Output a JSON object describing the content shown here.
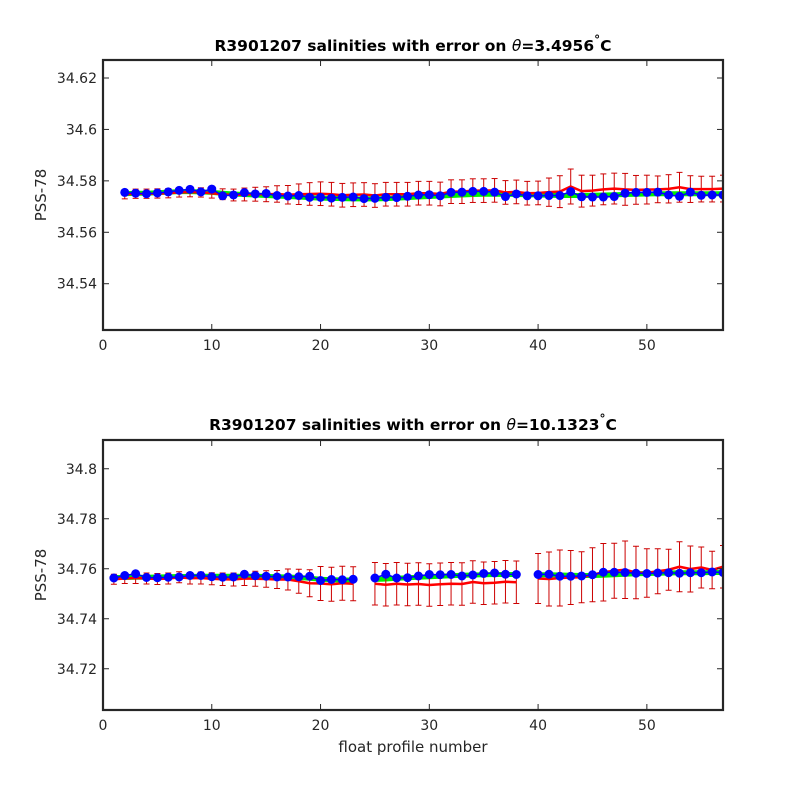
{
  "chart_data": [
    {
      "type": "line",
      "title": "R3901207 salinities with error on θ=3.4956°C",
      "title_parts": [
        "R3901207 salinities with error on ",
        "θ",
        "=3.4956",
        "°",
        "C"
      ],
      "xlabel": "",
      "ylabel": "PSS-78",
      "xlim": [
        0,
        57
      ],
      "ylim": [
        34.522,
        34.627
      ],
      "xticks": [
        "0",
        "10",
        "20",
        "30",
        "40",
        "50"
      ],
      "xtick_values": [
        0,
        10,
        20,
        30,
        40,
        50
      ],
      "yticks": [
        "34.54",
        "34.56",
        "34.58",
        "34.6",
        "34.62"
      ],
      "ytick_values": [
        34.54,
        34.56,
        34.58,
        34.6,
        34.62
      ],
      "grid": false,
      "colors": {
        "measured": "#0000ff",
        "calibrated": "#ff0000",
        "mapped": "#00ee00",
        "error_bar": "#cc0000"
      },
      "x": [
        2,
        3,
        4,
        5,
        6,
        7,
        8,
        9,
        10,
        11,
        12,
        13,
        14,
        15,
        16,
        17,
        18,
        19,
        20,
        21,
        22,
        23,
        24,
        25,
        26,
        27,
        28,
        29,
        30,
        31,
        32,
        33,
        34,
        35,
        36,
        37,
        38,
        39,
        40,
        41,
        42,
        43,
        44,
        45,
        46,
        47,
        48,
        49,
        50,
        51,
        52,
        53,
        54,
        55,
        56,
        57
      ],
      "series": [
        {
          "role": "mapped",
          "values": [
            34.575,
            34.5752,
            34.5752,
            34.5754,
            34.5756,
            34.5758,
            34.5758,
            34.5757,
            34.5755,
            34.5752,
            34.5749,
            34.5747,
            34.5745,
            34.5743,
            34.5741,
            34.5739,
            34.5737,
            34.5735,
            34.5733,
            34.5732,
            34.5731,
            34.573,
            34.573,
            34.573,
            34.5731,
            34.5733,
            34.5735,
            34.5737,
            34.5739,
            34.5741,
            34.5743,
            34.5745,
            34.5747,
            34.5748,
            34.5748,
            34.5748,
            34.5747,
            34.5746,
            34.5745,
            34.5744,
            34.5743,
            34.5743,
            34.5743,
            34.5744,
            34.5745,
            34.5746,
            34.5747,
            34.5748,
            34.5749,
            34.575,
            34.575,
            34.575,
            34.575,
            34.575,
            34.575,
            34.575
          ]
        },
        {
          "role": "calibrated",
          "values": [
            34.5748,
            34.575,
            34.575,
            34.5751,
            34.5752,
            34.5755,
            34.5756,
            34.5755,
            34.5752,
            34.5748,
            34.5745,
            34.5747,
            34.5748,
            34.5748,
            34.5749,
            34.5746,
            34.5748,
            34.5749,
            34.575,
            34.5748,
            34.5744,
            34.5746,
            34.5747,
            34.5743,
            34.5748,
            34.5748,
            34.5748,
            34.5752,
            34.5752,
            34.5749,
            34.5758,
            34.5758,
            34.5762,
            34.5762,
            34.5763,
            34.5755,
            34.5757,
            34.5752,
            34.5753,
            34.5756,
            34.5758,
            34.5778,
            34.576,
            34.5762,
            34.5767,
            34.577,
            34.5767,
            34.5765,
            34.5766,
            34.5767,
            34.5769,
            34.5775,
            34.5768,
            34.5768,
            34.5768,
            34.577
          ],
          "error": [
            0.0018,
            0.0018,
            0.0018,
            0.0018,
            0.0018,
            0.0018,
            0.0018,
            0.0018,
            0.0019,
            0.0021,
            0.0023,
            0.0025,
            0.0027,
            0.0029,
            0.0032,
            0.0036,
            0.004,
            0.0044,
            0.0046,
            0.0046,
            0.0046,
            0.0046,
            0.0046,
            0.0046,
            0.0046,
            0.0046,
            0.0046,
            0.0046,
            0.0046,
            0.0046,
            0.0046,
            0.0046,
            0.0046,
            0.0046,
            0.0046,
            0.0046,
            0.0046,
            0.0046,
            0.0046,
            0.0055,
            0.0062,
            0.0068,
            0.0062,
            0.006,
            0.006,
            0.006,
            0.0062,
            0.0056,
            0.0056,
            0.0052,
            0.0055,
            0.0058,
            0.0052,
            0.005,
            0.005,
            0.0052
          ]
        },
        {
          "role": "measured",
          "values": [
            34.5755,
            34.5752,
            34.575,
            34.5753,
            34.5757,
            34.5763,
            34.5767,
            34.5757,
            34.5768,
            34.5742,
            34.5745,
            34.5754,
            34.5749,
            34.5751,
            34.5743,
            34.5741,
            34.5743,
            34.5736,
            34.5736,
            34.5733,
            34.5736,
            34.5737,
            34.5731,
            34.5732,
            34.5736,
            34.5735,
            34.574,
            34.5745,
            34.5746,
            34.5742,
            34.5755,
            34.5756,
            34.5759,
            34.5759,
            34.5756,
            34.5739,
            34.5749,
            34.5742,
            34.5742,
            34.5743,
            34.5743,
            34.5758,
            34.5738,
            34.5737,
            34.5737,
            34.5739,
            34.5752,
            34.5755,
            34.5755,
            34.5756,
            34.5745,
            34.574,
            34.5756,
            34.5744,
            34.5745,
            34.5745
          ]
        }
      ]
    },
    {
      "type": "line",
      "title": "R3901207 salinities with error on θ=10.1323°C",
      "title_parts": [
        "R3901207 salinities with error on ",
        "θ",
        "=10.1323",
        "°",
        "C"
      ],
      "xlabel": "float profile number",
      "ylabel": "PSS-78",
      "xlim": [
        0,
        57
      ],
      "ylim": [
        34.7035,
        34.8115
      ],
      "xticks": [
        "0",
        "10",
        "20",
        "30",
        "40",
        "50"
      ],
      "xtick_values": [
        0,
        10,
        20,
        30,
        40,
        50
      ],
      "yticks": [
        "34.72",
        "34.74",
        "34.76",
        "34.78",
        "34.8"
      ],
      "ytick_values": [
        34.72,
        34.74,
        34.76,
        34.78,
        34.8
      ],
      "grid": false,
      "colors": {
        "measured": "#0000ff",
        "calibrated": "#ff0000",
        "mapped": "#00ee00",
        "error_bar": "#cc0000"
      },
      "x": [
        1,
        2,
        3,
        4,
        5,
        6,
        7,
        8,
        9,
        10,
        11,
        12,
        13,
        14,
        15,
        16,
        17,
        18,
        19,
        20,
        21,
        22,
        23,
        25,
        26,
        27,
        28,
        29,
        30,
        31,
        32,
        33,
        34,
        35,
        36,
        37,
        38,
        40,
        41,
        42,
        43,
        44,
        45,
        46,
        47,
        48,
        49,
        50,
        51,
        52,
        53,
        54,
        55,
        56,
        57
      ],
      "series": [
        {
          "role": "mapped",
          "values": [
            34.7565,
            34.7565,
            34.7566,
            34.7566,
            34.7567,
            34.7568,
            34.7569,
            34.7569,
            34.757,
            34.757,
            34.757,
            34.757,
            34.757,
            34.757,
            34.7569,
            34.7568,
            34.7567,
            34.7565,
            34.7562,
            34.7558,
            34.7556,
            34.7555,
            34.7555,
            34.7557,
            34.7559,
            34.7562,
            34.7564,
            34.7566,
            34.7568,
            34.757,
            34.7572,
            34.7574,
            34.7575,
            34.7576,
            34.7577,
            34.7577,
            34.7577,
            34.7576,
            34.7576,
            34.7575,
            34.7574,
            34.7573,
            34.7573,
            34.7574,
            34.7576,
            34.7578,
            34.758,
            34.7581,
            34.7582,
            34.7583,
            34.7584,
            34.7584,
            34.7584,
            34.7585,
            34.7585
          ],
          "gaps_after_x": [
            23,
            38
          ]
        },
        {
          "role": "calibrated",
          "values": [
            34.7558,
            34.7561,
            34.7563,
            34.7561,
            34.7559,
            34.7561,
            34.7566,
            34.7562,
            34.7563,
            34.756,
            34.7558,
            34.7557,
            34.7561,
            34.756,
            34.7559,
            34.7557,
            34.7557,
            34.755,
            34.7542,
            34.7541,
            34.7538,
            34.7542,
            34.754,
            34.754,
            34.7536,
            34.754,
            34.7537,
            34.7539,
            34.7535,
            34.7538,
            34.754,
            34.7539,
            34.7547,
            34.7542,
            34.7544,
            34.7548,
            34.7546,
            34.7561,
            34.7559,
            34.7563,
            34.7565,
            34.7566,
            34.7576,
            34.7586,
            34.7592,
            34.7596,
            34.7585,
            34.7583,
            34.759,
            34.7596,
            34.7608,
            34.7599,
            34.7605,
            34.7595,
            34.7608
          ],
          "error": [
            0.002,
            0.002,
            0.0022,
            0.0022,
            0.0022,
            0.0022,
            0.0022,
            0.0023,
            0.0024,
            0.0024,
            0.0025,
            0.0026,
            0.0028,
            0.003,
            0.0033,
            0.0036,
            0.0042,
            0.0048,
            0.0054,
            0.0068,
            0.0068,
            0.0068,
            0.0068,
            0.0085,
            0.0085,
            0.0085,
            0.0085,
            0.0085,
            0.0085,
            0.0085,
            0.0085,
            0.0085,
            0.0085,
            0.0085,
            0.0085,
            0.0085,
            0.0085,
            0.01,
            0.0108,
            0.0112,
            0.0108,
            0.0102,
            0.0108,
            0.0115,
            0.011,
            0.0115,
            0.0105,
            0.0097,
            0.009,
            0.0082,
            0.01,
            0.0092,
            0.0082,
            0.0075,
            0.0085
          ],
          "gaps_after_x": [
            23,
            38
          ]
        },
        {
          "role": "measured",
          "values": [
            34.7563,
            34.7573,
            34.758,
            34.7565,
            34.7564,
            34.7566,
            34.7567,
            34.7573,
            34.7573,
            34.7568,
            34.7566,
            34.7567,
            34.7578,
            34.7572,
            34.757,
            34.7567,
            34.7567,
            34.7568,
            34.757,
            34.7553,
            34.7557,
            34.7556,
            34.7558,
            34.7563,
            34.7578,
            34.7563,
            34.7564,
            34.7571,
            34.7577,
            34.7576,
            34.7577,
            34.7571,
            34.7575,
            34.7581,
            34.7583,
            34.7578,
            34.7577,
            34.7577,
            34.7578,
            34.757,
            34.757,
            34.7571,
            34.7576,
            34.7586,
            34.7586,
            34.7585,
            34.7582,
            34.7581,
            34.7583,
            34.7584,
            34.7582,
            34.7584,
            34.7584,
            34.7587,
            34.7585
          ],
          "gaps_after_x": [
            23,
            38
          ]
        }
      ]
    }
  ]
}
